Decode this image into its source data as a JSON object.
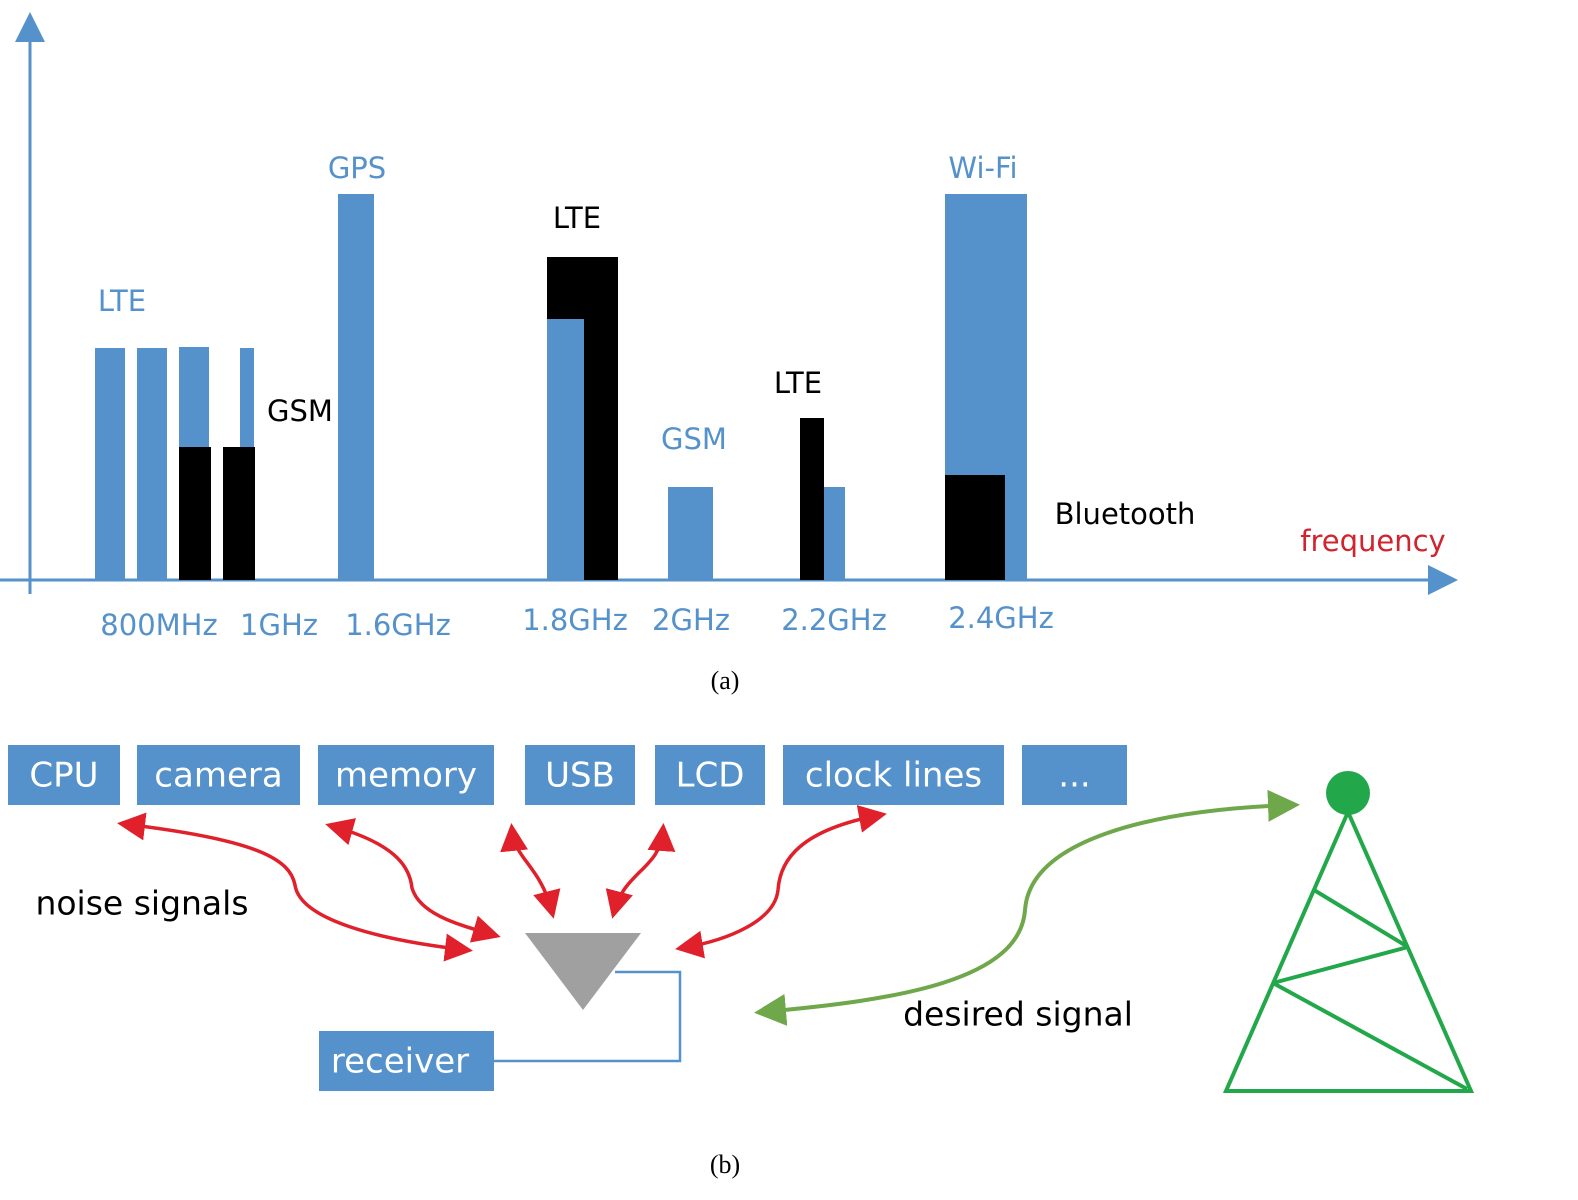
{
  "panel_a": {
    "band_labels": [
      "LTE",
      "GSM",
      "GPS",
      "LTE",
      "GSM",
      "LTE",
      "Wi-Fi",
      "Bluetooth"
    ],
    "axis_label": "frequency",
    "frequency_labels": [
      "800MHz",
      "1GHz",
      "1.6GHz",
      "1.8GHz",
      "2GHz",
      "2.2GHz",
      "2.4GHz"
    ],
    "caption": "(a)"
  },
  "panel_b": {
    "sources": [
      "CPU",
      "camera",
      "memory",
      "USB",
      "LCD",
      "clock lines",
      "..."
    ],
    "noise_label": "noise signals",
    "receiver": "receiver",
    "desired_label": "desired signal",
    "caption": "(b)"
  }
}
